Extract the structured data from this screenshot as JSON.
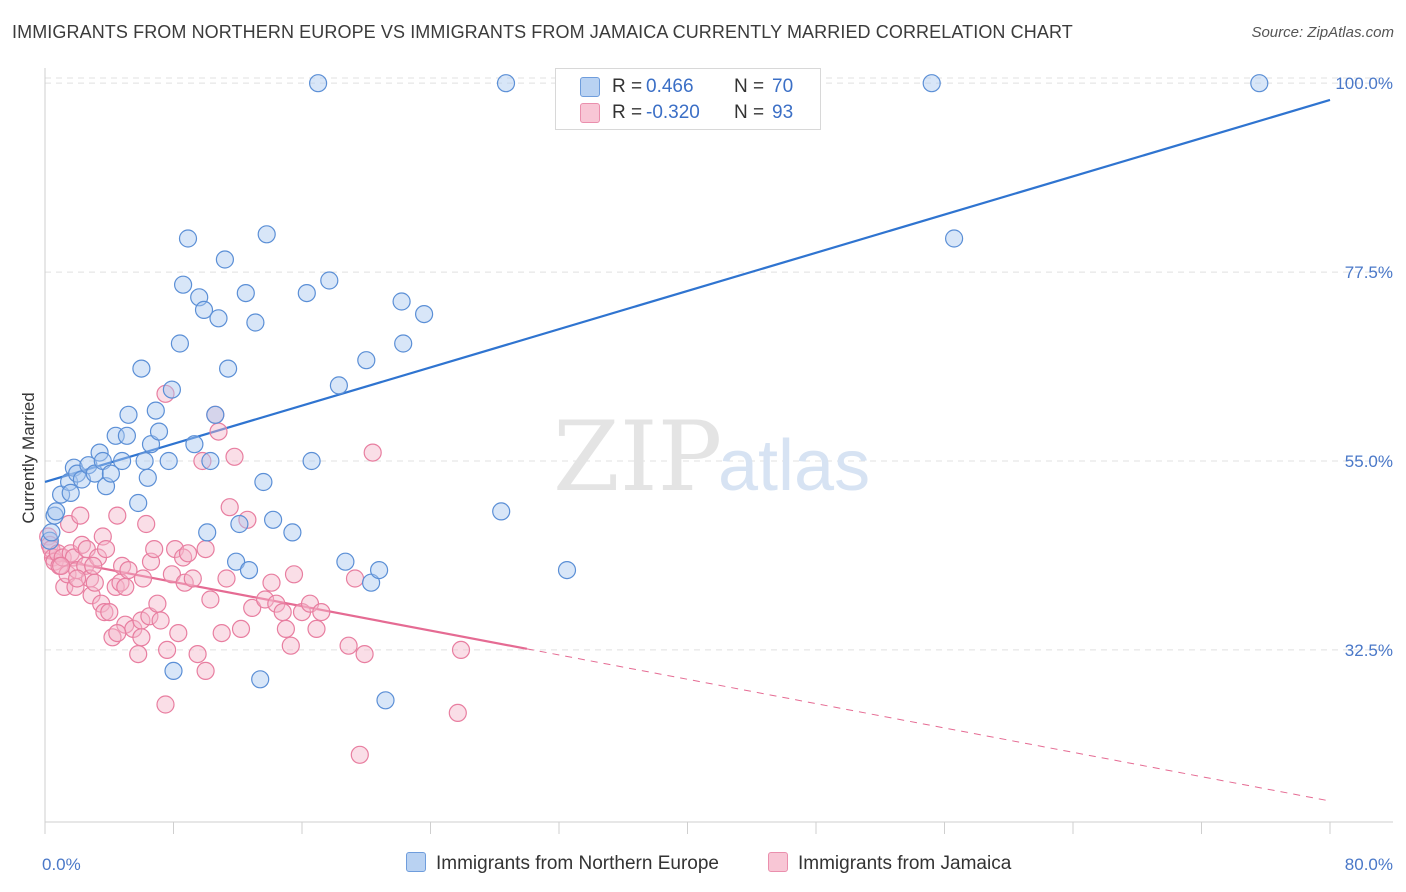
{
  "header": {
    "title": "IMMIGRANTS FROM NORTHERN EUROPE VS IMMIGRANTS FROM JAMAICA CURRENTLY MARRIED CORRELATION CHART",
    "source": "Source: ZipAtlas.com"
  },
  "watermark": {
    "zip": "ZIP",
    "atlas": "atlas"
  },
  "legend": {
    "rows": [
      {
        "r_label": "R =",
        "r_value": "0.466",
        "n_label": "N =",
        "n_value": "70"
      },
      {
        "r_label": "R =",
        "r_value": "-0.320",
        "n_label": "N =",
        "n_value": "93"
      }
    ]
  },
  "bottom_legend": {
    "series1": "Immigrants from Northern Europe",
    "series2": "Immigrants from Jamaica"
  },
  "colors": {
    "blue_fill": "#a9c8ef",
    "blue_stroke": "#5b8fd6",
    "blue_line": "#2f74d0",
    "pink_fill": "#f5b6c9",
    "pink_stroke": "#e87ea0",
    "pink_line": "#e56b93",
    "grid": "#e0e0e0",
    "tick_text": "#4a78c8"
  },
  "chart_data": {
    "type": "scatter",
    "title": "IMMIGRANTS FROM NORTHERN EUROPE VS IMMIGRANTS FROM JAMAICA CURRENTLY MARRIED CORRELATION CHART",
    "xlabel": "",
    "ylabel": "Currently Married",
    "xlim": [
      0,
      80
    ],
    "ylim": [
      12,
      103
    ],
    "x_tick_labels": [
      "0.0%",
      "80.0%"
    ],
    "y_ticks": [
      32.5,
      55.0,
      77.5,
      100.0
    ],
    "y_tick_labels": [
      "32.5%",
      "55.0%",
      "77.5%",
      "100.0%"
    ],
    "grid": true,
    "series": [
      {
        "name": "Immigrants from Northern Europe",
        "r": 0.466,
        "n": 70,
        "trend": {
          "x": [
            0,
            80
          ],
          "y": [
            52.5,
            98.0
          ],
          "dashed_from_x": null
        },
        "points": [
          [
            0.3,
            45.5
          ],
          [
            0.4,
            46.5
          ],
          [
            0.6,
            48.5
          ],
          [
            0.7,
            49.0
          ],
          [
            1.0,
            51.0
          ],
          [
            1.5,
            52.5
          ],
          [
            1.6,
            51.2
          ],
          [
            1.8,
            54.2
          ],
          [
            2.0,
            53.5
          ],
          [
            2.3,
            52.8
          ],
          [
            2.7,
            54.5
          ],
          [
            3.1,
            53.5
          ],
          [
            3.4,
            56.0
          ],
          [
            3.6,
            55.0
          ],
          [
            3.8,
            52.0
          ],
          [
            4.1,
            53.5
          ],
          [
            4.4,
            58.0
          ],
          [
            4.8,
            55.0
          ],
          [
            5.1,
            58.0
          ],
          [
            5.2,
            60.5
          ],
          [
            5.8,
            50.0
          ],
          [
            6.0,
            66.0
          ],
          [
            6.2,
            55.0
          ],
          [
            6.4,
            53.0
          ],
          [
            6.6,
            57.0
          ],
          [
            6.9,
            61.0
          ],
          [
            7.1,
            58.5
          ],
          [
            7.7,
            55.0
          ],
          [
            7.9,
            63.5
          ],
          [
            8.4,
            69.0
          ],
          [
            8.6,
            76.0
          ],
          [
            8.9,
            81.5
          ],
          [
            9.3,
            57.0
          ],
          [
            9.6,
            74.5
          ],
          [
            9.9,
            73.0
          ],
          [
            10.1,
            46.5
          ],
          [
            10.3,
            55.0
          ],
          [
            10.6,
            60.5
          ],
          [
            10.8,
            72.0
          ],
          [
            11.2,
            79.0
          ],
          [
            11.4,
            66.0
          ],
          [
            11.9,
            43.0
          ],
          [
            12.1,
            47.5
          ],
          [
            12.5,
            75.0
          ],
          [
            12.7,
            42.0
          ],
          [
            13.1,
            71.5
          ],
          [
            13.6,
            52.5
          ],
          [
            13.8,
            82.0
          ],
          [
            14.2,
            48.0
          ],
          [
            15.4,
            46.5
          ],
          [
            16.3,
            75.0
          ],
          [
            16.6,
            55.0
          ],
          [
            17.0,
            100.0
          ],
          [
            17.7,
            76.5
          ],
          [
            18.3,
            64.0
          ],
          [
            18.7,
            43.0
          ],
          [
            20.0,
            67.0
          ],
          [
            20.3,
            40.5
          ],
          [
            20.8,
            42.0
          ],
          [
            22.2,
            74.0
          ],
          [
            22.3,
            69.0
          ],
          [
            23.6,
            72.5
          ],
          [
            28.4,
            49.0
          ],
          [
            28.7,
            100.0
          ],
          [
            32.5,
            42.0
          ],
          [
            8.0,
            30.0
          ],
          [
            13.4,
            29.0
          ],
          [
            21.2,
            26.5
          ],
          [
            55.2,
            100.0
          ],
          [
            56.6,
            81.5
          ],
          [
            75.6,
            100.0
          ]
        ]
      },
      {
        "name": "Immigrants from Jamaica",
        "r": -0.32,
        "n": 93,
        "trend": {
          "x": [
            0,
            80
          ],
          "y": [
            43.5,
            14.5
          ],
          "dashed_from_x": 30.0
        },
        "points": [
          [
            0.2,
            46.0
          ],
          [
            0.3,
            45.0
          ],
          [
            0.4,
            44.5
          ],
          [
            0.5,
            43.5
          ],
          [
            0.6,
            43.0
          ],
          [
            0.8,
            44.0
          ],
          [
            0.9,
            42.5
          ],
          [
            1.1,
            43.5
          ],
          [
            1.2,
            40.0
          ],
          [
            1.4,
            41.5
          ],
          [
            1.5,
            47.5
          ],
          [
            1.6,
            44.0
          ],
          [
            1.8,
            43.5
          ],
          [
            1.9,
            40.0
          ],
          [
            2.0,
            42.0
          ],
          [
            2.2,
            48.5
          ],
          [
            2.3,
            45.0
          ],
          [
            2.5,
            42.5
          ],
          [
            2.6,
            44.5
          ],
          [
            2.8,
            41.0
          ],
          [
            2.9,
            39.0
          ],
          [
            3.1,
            40.5
          ],
          [
            3.3,
            43.5
          ],
          [
            3.5,
            38.0
          ],
          [
            3.6,
            46.0
          ],
          [
            3.7,
            37.0
          ],
          [
            3.8,
            44.5
          ],
          [
            4.0,
            37.0
          ],
          [
            4.2,
            34.0
          ],
          [
            4.4,
            40.0
          ],
          [
            4.5,
            48.5
          ],
          [
            4.7,
            40.5
          ],
          [
            4.8,
            42.5
          ],
          [
            5.0,
            35.5
          ],
          [
            5.2,
            42.0
          ],
          [
            5.5,
            35.0
          ],
          [
            5.8,
            32.0
          ],
          [
            6.0,
            36.0
          ],
          [
            6.1,
            41.0
          ],
          [
            6.3,
            47.5
          ],
          [
            6.5,
            36.5
          ],
          [
            6.6,
            43.0
          ],
          [
            6.8,
            44.5
          ],
          [
            7.0,
            38.0
          ],
          [
            7.2,
            36.0
          ],
          [
            7.5,
            26.0
          ],
          [
            7.6,
            32.5
          ],
          [
            7.9,
            41.5
          ],
          [
            8.1,
            44.5
          ],
          [
            8.3,
            34.5
          ],
          [
            8.6,
            43.5
          ],
          [
            8.7,
            40.5
          ],
          [
            8.9,
            44.0
          ],
          [
            9.2,
            41.0
          ],
          [
            9.5,
            32.0
          ],
          [
            9.8,
            55.0
          ],
          [
            10.0,
            44.5
          ],
          [
            10.3,
            38.5
          ],
          [
            10.6,
            60.5
          ],
          [
            10.8,
            58.5
          ],
          [
            11.0,
            34.5
          ],
          [
            11.3,
            41.0
          ],
          [
            11.5,
            49.5
          ],
          [
            11.8,
            55.5
          ],
          [
            12.2,
            35.0
          ],
          [
            12.6,
            48.0
          ],
          [
            12.9,
            37.5
          ],
          [
            13.7,
            38.5
          ],
          [
            14.1,
            40.5
          ],
          [
            14.4,
            38.0
          ],
          [
            14.8,
            37.0
          ],
          [
            15.0,
            35.0
          ],
          [
            15.3,
            33.0
          ],
          [
            15.5,
            41.5
          ],
          [
            16.0,
            37.0
          ],
          [
            16.5,
            38.0
          ],
          [
            16.9,
            35.0
          ],
          [
            17.2,
            37.0
          ],
          [
            18.9,
            33.0
          ],
          [
            19.3,
            41.0
          ],
          [
            19.6,
            20.0
          ],
          [
            19.9,
            32.0
          ],
          [
            20.4,
            56.0
          ],
          [
            25.7,
            25.0
          ],
          [
            25.9,
            32.5
          ],
          [
            7.5,
            63.0
          ],
          [
            10.0,
            30.0
          ],
          [
            5.0,
            40.0
          ],
          [
            3.0,
            42.5
          ],
          [
            2.0,
            41.0
          ],
          [
            1.0,
            42.5
          ],
          [
            6.0,
            34.0
          ],
          [
            4.5,
            34.5
          ]
        ]
      }
    ]
  }
}
